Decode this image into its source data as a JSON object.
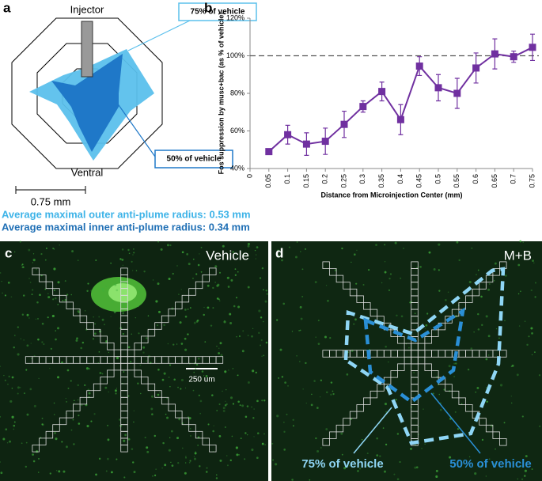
{
  "panel_labels": [
    "a",
    "b",
    "c",
    "d"
  ],
  "radar": {
    "top_label": "Injector",
    "bottom_label": "Ventral",
    "outer_label": "75% of vehicle",
    "inner_label": "50% of vehicle",
    "scale_bar": "0.75 mm"
  },
  "summary": [
    "Average maximal outer anti-plume radius: 0.53 mm",
    "Average maximal inner anti-plume radius: 0.34 mm"
  ],
  "chart_data": {
    "type": "line",
    "x_label": "Distance from Microinjection Center (mm)",
    "y_label": "Fos suppression by musc+bac (as % of vehicle)",
    "x": [
      0.05,
      0.1,
      0.15,
      0.2,
      0.25,
      0.3,
      0.35,
      0.4,
      0.45,
      0.5,
      0.55,
      0.6,
      0.65,
      0.7,
      0.75
    ],
    "series": [
      {
        "color": "#7030a0",
        "values": [
          49,
          58,
          53,
          54.5,
          63.5,
          73,
          81,
          66,
          94.5,
          83,
          80,
          93.5,
          101,
          99.5,
          104.5
        ],
        "errors": [
          1,
          5,
          6,
          7,
          7,
          3,
          5,
          8,
          5,
          7,
          8,
          8,
          8,
          3,
          7
        ]
      }
    ],
    "xlim": [
      0,
      0.75
    ],
    "xticks": [
      0,
      0.05,
      0.1,
      0.15,
      0.2,
      0.25,
      0.3,
      0.35,
      0.4,
      0.45,
      0.5,
      0.55,
      0.6,
      0.65,
      0.7,
      0.75
    ],
    "ylim": [
      40,
      120
    ],
    "yticks": [
      {
        "value": 40,
        "label": "40%"
      },
      {
        "value": 60,
        "label": "60%"
      },
      {
        "value": 80,
        "label": "80%"
      },
      {
        "value": 100,
        "label": "100%"
      },
      {
        "value": 120,
        "label": "120%"
      }
    ],
    "reference_line": 100,
    "grid": false
  },
  "image_c": {
    "title": "Vehicle",
    "scale_bar": "250 um"
  },
  "image_d": {
    "title": "M+B",
    "outer_label": "75% of vehicle",
    "inner_label": "50% of vehicle"
  }
}
